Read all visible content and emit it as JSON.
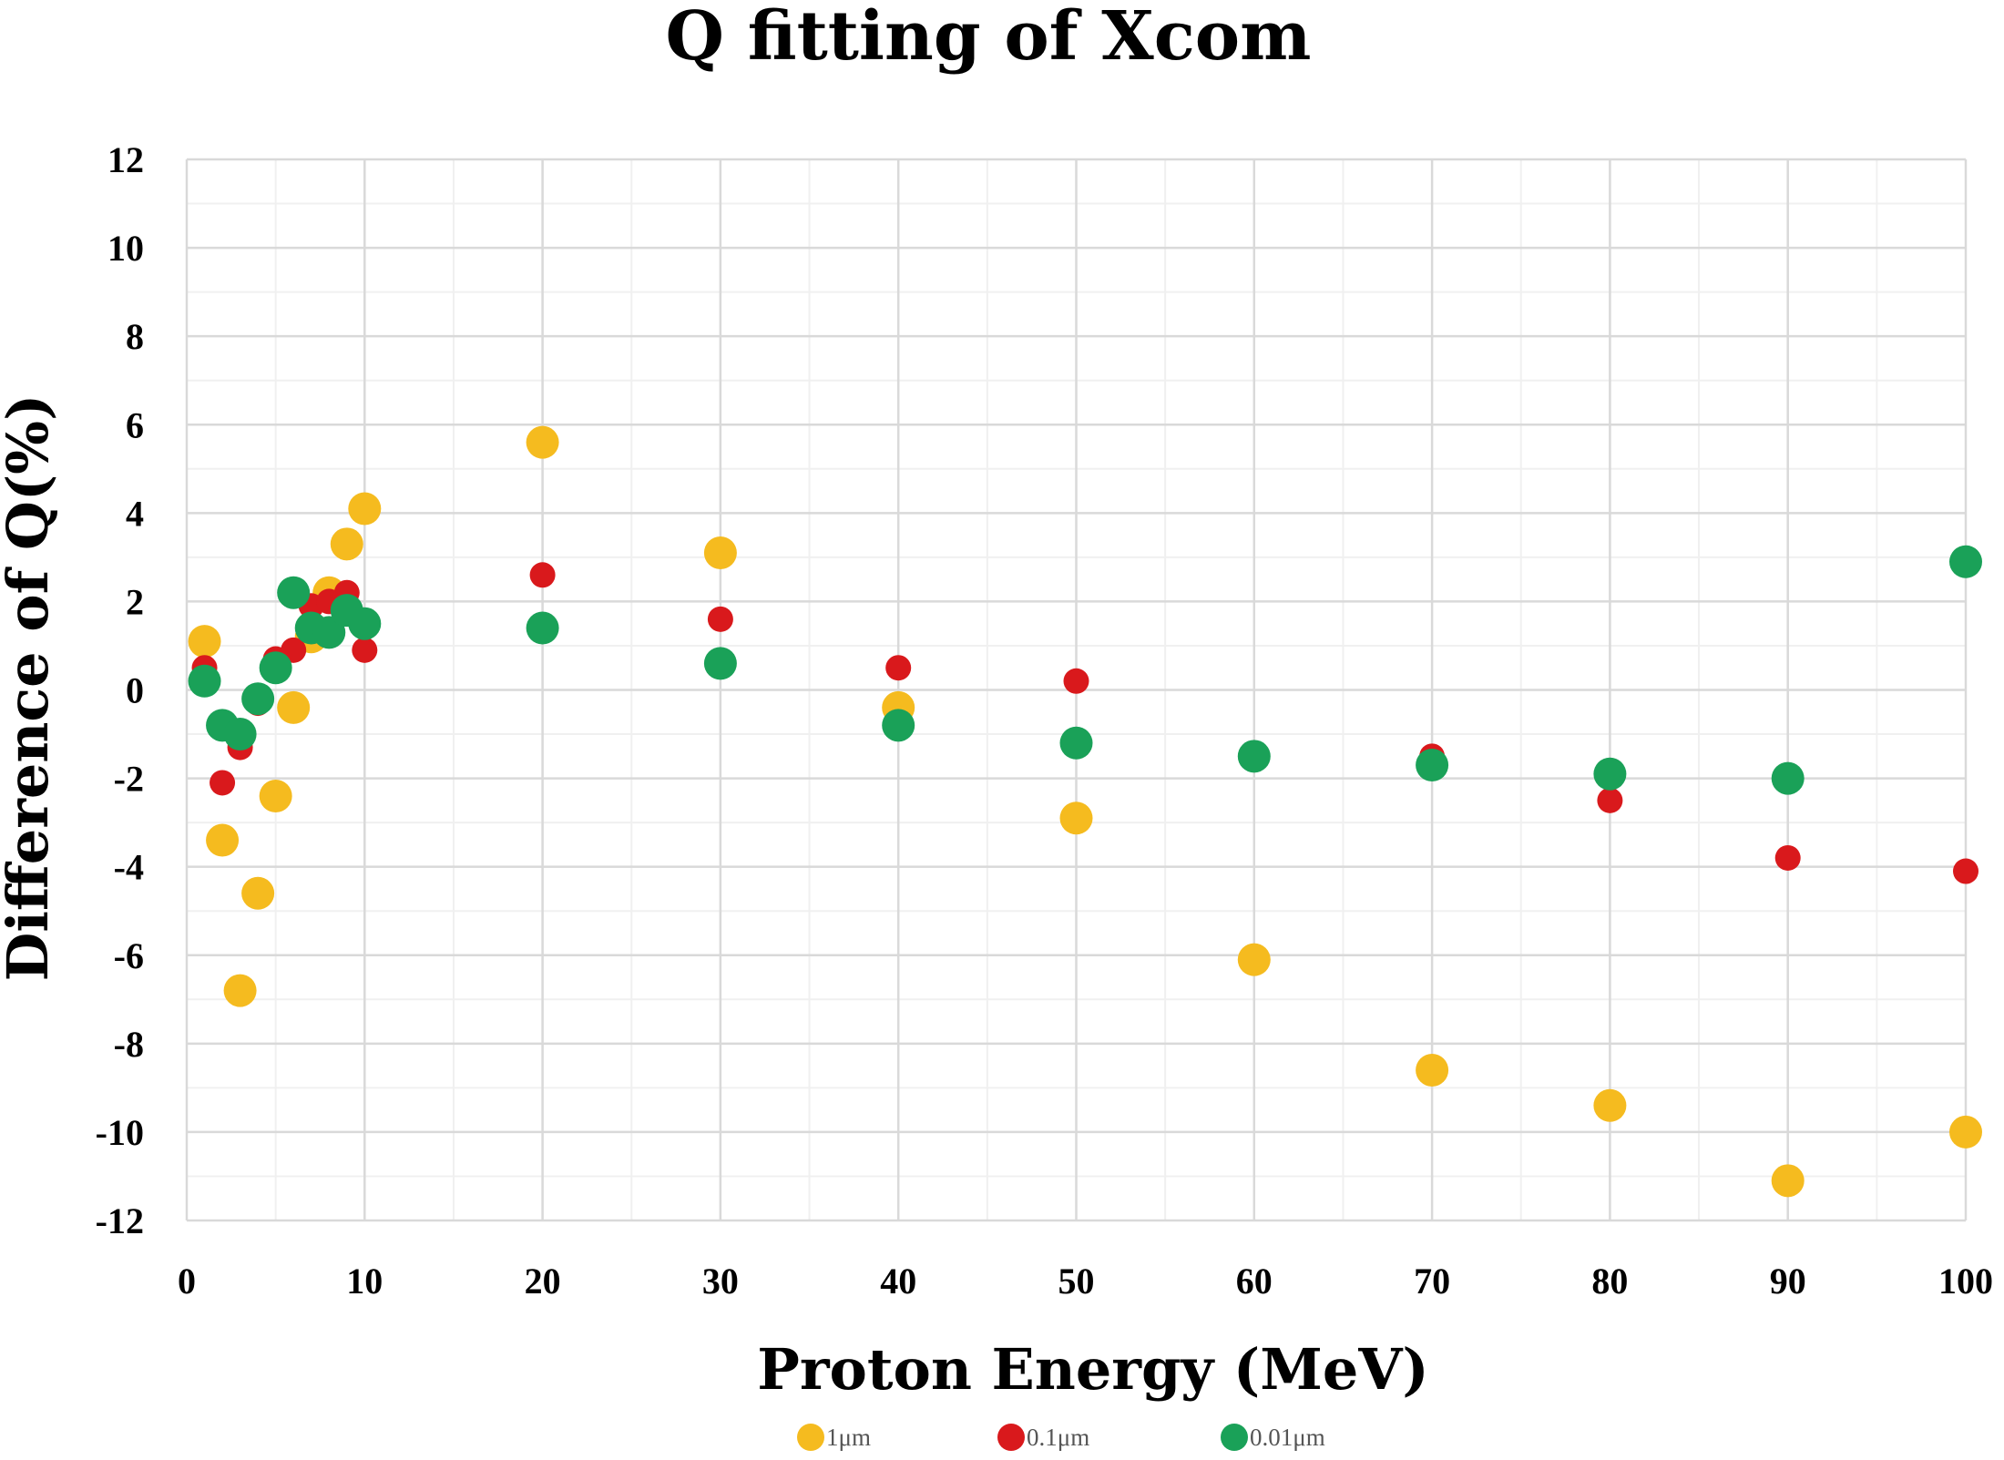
{
  "chart_data": {
    "type": "scatter",
    "title": "Q fitting of Xcom",
    "xlabel": "Proton Energy (MeV)",
    "ylabel": "Difference of Q(%)",
    "xlim": [
      0,
      100
    ],
    "ylim": [
      -12,
      12
    ],
    "xticks": [
      0,
      10,
      20,
      30,
      40,
      50,
      60,
      70,
      80,
      90,
      100
    ],
    "yticks": [
      -12,
      -10,
      -8,
      -6,
      -4,
      -2,
      0,
      2,
      4,
      6,
      8,
      10,
      12
    ],
    "grid": true,
    "legend_position": "bottom",
    "series": [
      {
        "name": "1μm",
        "color": "#f5bb1f",
        "x": [
          1,
          2,
          3,
          4,
          5,
          6,
          7,
          8,
          9,
          10,
          20,
          30,
          40,
          50,
          60,
          70,
          80,
          90,
          100
        ],
        "y": [
          1.1,
          -3.4,
          -6.8,
          -4.6,
          -2.4,
          -0.4,
          1.2,
          2.2,
          3.3,
          4.1,
          5.6,
          3.1,
          -0.4,
          -2.9,
          -6.1,
          -8.6,
          -9.4,
          -11.1,
          -10.0
        ]
      },
      {
        "name": "0.1μm",
        "color": "#d9191c",
        "x": [
          1,
          2,
          3,
          4,
          5,
          6,
          7,
          8,
          9,
          10,
          20,
          30,
          40,
          50,
          60,
          70,
          80,
          90,
          100
        ],
        "y": [
          0.5,
          -2.1,
          -1.3,
          -0.3,
          0.7,
          0.9,
          1.9,
          2.0,
          2.2,
          0.9,
          2.6,
          1.6,
          0.5,
          0.2,
          -1.5,
          -1.5,
          -2.5,
          -3.8,
          -4.1
        ]
      },
      {
        "name": "0.01μm",
        "color": "#1aa158",
        "x": [
          1,
          2,
          3,
          4,
          5,
          6,
          7,
          8,
          9,
          10,
          20,
          30,
          40,
          50,
          60,
          70,
          80,
          90,
          100
        ],
        "y": [
          0.2,
          -0.8,
          -1.0,
          -0.2,
          0.5,
          2.2,
          1.4,
          1.3,
          1.8,
          1.5,
          1.4,
          0.6,
          -0.8,
          -1.2,
          -1.5,
          -1.7,
          -1.9,
          -2.0,
          2.9
        ]
      }
    ]
  }
}
